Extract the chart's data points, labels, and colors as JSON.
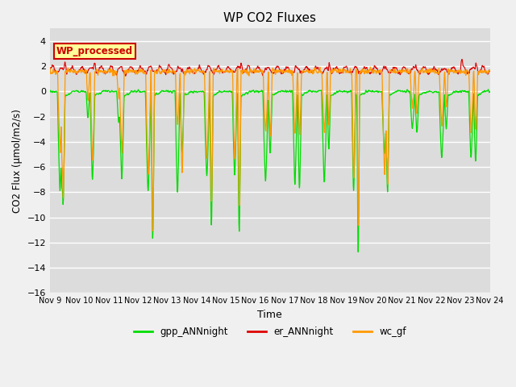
{
  "title": "WP CO2 Fluxes",
  "ylabel": "CO2 Flux (μmol/m2/s)",
  "xlabel": "Time",
  "ylim": [
    -16,
    5
  ],
  "yticks": [
    4,
    2,
    0,
    -2,
    -4,
    -6,
    -8,
    -10,
    -12,
    -14,
    -16
  ],
  "xtick_labels": [
    "Nov 9",
    "Nov 10",
    "Nov 11",
    "Nov 12",
    "Nov 13",
    "Nov 14",
    "Nov 15",
    "Nov 16",
    "Nov 17",
    "Nov 18",
    "Nov 19",
    "Nov 20",
    "Nov 21",
    "Nov 22",
    "Nov 23",
    "Nov 24"
  ],
  "bg_color": "#dcdcdc",
  "fig_bg": "#f0f0f0",
  "gpp_color": "#00dd00",
  "er_color": "#dd0000",
  "wc_color": "#ff9900",
  "legend_labels": [
    "gpp_ANNnight",
    "er_ANNnight",
    "wc_gf"
  ],
  "annotation_text": "WP_processed",
  "annotation_bg": "#ffff99",
  "annotation_border": "#cc0000"
}
